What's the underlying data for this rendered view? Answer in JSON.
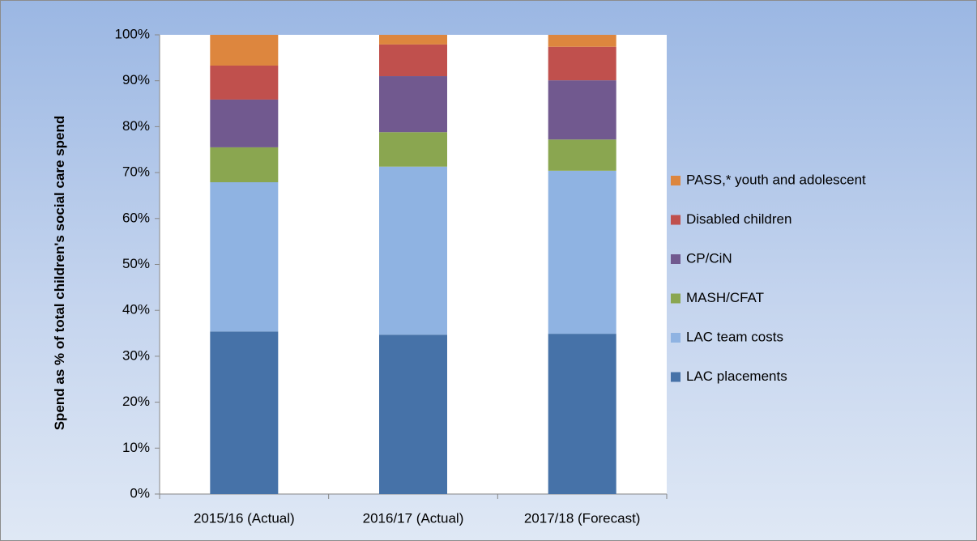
{
  "chart_data": {
    "type": "stacked_bar",
    "y_label": "Spend as % of total children's social care spend",
    "categories": [
      "2015/16 (Actual)",
      "2016/17 (Actual)",
      "2017/18 (Forecast)"
    ],
    "series": [
      {
        "name": "LAC placements",
        "color": "#4672a8",
        "values": [
          35.4,
          34.7,
          34.9
        ]
      },
      {
        "name": "LAC team costs",
        "color": "#8fb3e2",
        "values": [
          32.5,
          36.6,
          35.5
        ]
      },
      {
        "name": "MASH/CFAT",
        "color": "#8aa650",
        "values": [
          7.6,
          7.5,
          6.8
        ]
      },
      {
        "name": "CP/CiN",
        "color": "#71598f",
        "values": [
          10.4,
          12.2,
          12.9
        ]
      },
      {
        "name": "Disabled children",
        "color": "#c0504d",
        "values": [
          7.4,
          6.9,
          7.3
        ]
      },
      {
        "name": "PASS,* youth and adolescent",
        "color": "#dd863e",
        "values": [
          6.7,
          2.1,
          2.6
        ]
      }
    ],
    "ylim": [
      0,
      100
    ],
    "yticks": [
      {
        "value": 0,
        "label": "0%"
      },
      {
        "value": 10,
        "label": "10%"
      },
      {
        "value": 20,
        "label": "20%"
      },
      {
        "value": 30,
        "label": "30%"
      },
      {
        "value": 40,
        "label": "40%"
      },
      {
        "value": 50,
        "label": "50%"
      },
      {
        "value": 60,
        "label": "60%"
      },
      {
        "value": 70,
        "label": "70%"
      },
      {
        "value": 80,
        "label": "80%"
      },
      {
        "value": 90,
        "label": "90%"
      },
      {
        "value": 100,
        "label": "100%"
      }
    ],
    "legend": "right"
  }
}
